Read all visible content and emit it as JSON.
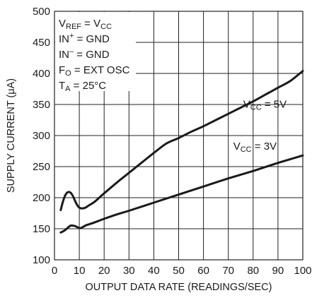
{
  "chart_data": {
    "type": "line",
    "xlabel": "OUTPUT DATA RATE (READINGS/SEC)",
    "ylabel": "SUPPLY CURRENT (μA)",
    "xlim": [
      0,
      100
    ],
    "ylim": [
      100,
      500
    ],
    "x_ticks": [
      "0",
      "10",
      "20",
      "30",
      "40",
      "50",
      "60",
      "70",
      "80",
      "90",
      "100"
    ],
    "y_ticks": [
      "100",
      "150",
      "200",
      "250",
      "300",
      "350",
      "400",
      "450",
      "500"
    ],
    "grid": true,
    "conditions": [
      {
        "main": "V",
        "sub": "REF",
        "rest": " = V",
        "sub2": "CC"
      },
      {
        "main": "IN",
        "sup": "+",
        "rest": " = GND"
      },
      {
        "main": "IN",
        "sup": "–",
        "rest": " = GND"
      },
      {
        "main": "F",
        "sub": "O",
        "rest": " = EXT OSC"
      },
      {
        "main": "T",
        "sub": "A",
        "rest": " = 25°C"
      }
    ],
    "series": [
      {
        "name": "VCC = 5V",
        "label": {
          "main": "V",
          "sub": "CC",
          "rest": " = 5V"
        },
        "label_at": [
          76,
          345
        ],
        "x": [
          2.5,
          3.5,
          4.5,
          5.5,
          6.5,
          7.5,
          8.5,
          9.5,
          10.5,
          11.5,
          12.5,
          14,
          16,
          20,
          25,
          30,
          35,
          40,
          45,
          50,
          55,
          60,
          65,
          70,
          75,
          80,
          85,
          90,
          95,
          100
        ],
        "y": [
          180,
          195,
          205,
          209,
          208,
          202,
          193,
          186,
          183,
          183,
          184,
          188,
          193,
          207,
          224,
          240,
          256,
          272,
          287,
          296,
          306,
          315,
          325,
          335,
          345,
          355,
          366,
          377,
          388,
          404
        ]
      },
      {
        "name": "VCC = 3V",
        "label": {
          "main": "V",
          "sub": "CC",
          "rest": " = 3V"
        },
        "label_at": [
          72,
          277
        ],
        "x": [
          2.5,
          4,
          5.5,
          6.5,
          7.5,
          8.5,
          9.5,
          10.5,
          11.5,
          13,
          16,
          20,
          25,
          30,
          40,
          50,
          60,
          70,
          80,
          90,
          100
        ],
        "y": [
          144,
          147,
          152,
          155,
          155,
          154,
          152,
          151,
          153,
          156,
          160,
          166,
          173,
          179,
          192,
          205,
          218,
          231,
          243,
          256,
          268
        ]
      }
    ]
  }
}
